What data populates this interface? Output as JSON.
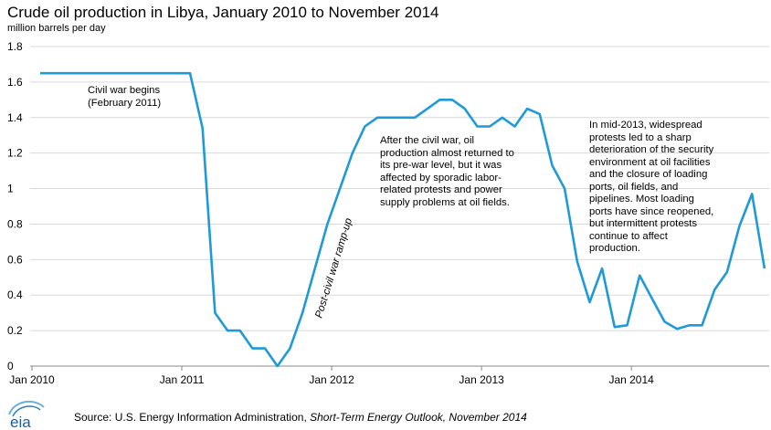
{
  "chart_data": {
    "type": "line",
    "title": "Crude oil production in Libya, January 2010 to November 2014",
    "ylabel": "million barrels  per day",
    "xlabel": "",
    "ylim": [
      0,
      1.8
    ],
    "yticks": [
      0,
      0.2,
      0.4,
      0.6,
      0.8,
      1,
      1.2,
      1.4,
      1.6,
      1.8
    ],
    "ytick_labels": [
      "0",
      "0.2",
      "0.4",
      "0.6",
      "0.8",
      "1",
      "1.2",
      "1.4",
      "1.6",
      "1.8"
    ],
    "xlim": [
      0,
      58
    ],
    "xticks": [
      0,
      12,
      24,
      36,
      48
    ],
    "xtick_labels": [
      "Jan 2010",
      "Jan 2011",
      "Jan 2012",
      "Jan 2013",
      "Jan 2014"
    ],
    "grid": true,
    "line_color": "#1f9ad6",
    "series": [
      {
        "name": "Crude oil production",
        "x": [
          0,
          1,
          2,
          3,
          4,
          5,
          6,
          7,
          8,
          9,
          10,
          11,
          12,
          13,
          14,
          15,
          16,
          17,
          18,
          19,
          20,
          21,
          22,
          23,
          24,
          25,
          26,
          27,
          28,
          29,
          30,
          31,
          32,
          33,
          34,
          35,
          36,
          37,
          38,
          39,
          40,
          41,
          42,
          43,
          44,
          45,
          46,
          47,
          48,
          49,
          50,
          51,
          52,
          53,
          54,
          55,
          56,
          57,
          58
        ],
        "values": [
          1.65,
          1.65,
          1.65,
          1.65,
          1.65,
          1.65,
          1.65,
          1.65,
          1.65,
          1.65,
          1.65,
          1.65,
          1.65,
          1.34,
          0.3,
          0.2,
          0.2,
          0.1,
          0.1,
          0.0,
          0.1,
          0.3,
          0.55,
          0.8,
          1.0,
          1.2,
          1.35,
          1.4,
          1.4,
          1.4,
          1.4,
          1.45,
          1.5,
          1.5,
          1.45,
          1.35,
          1.35,
          1.4,
          1.35,
          1.45,
          1.42,
          1.13,
          1.0,
          0.59,
          0.36,
          0.55,
          0.22,
          0.23,
          0.51,
          0.38,
          0.25,
          0.21,
          0.23,
          0.23,
          0.43,
          0.53,
          0.79,
          0.97,
          0.55
        ]
      }
    ],
    "annotations": [
      {
        "id": "civil_war",
        "lines": [
          "Civil war begins",
          "(February 2011)"
        ]
      },
      {
        "id": "ramp_up",
        "lines": [
          "Post-civil war ramp-up"
        ]
      },
      {
        "id": "after_war",
        "lines": [
          "After the civil war, oil",
          "production almost returned to",
          "its pre-war level, but it was",
          "affected by sporadic labor-",
          "related protests and power",
          "supply problems at oil fields."
        ]
      },
      {
        "id": "mid_2013",
        "lines": [
          "In mid-2013, widespread",
          "protests led to a sharp",
          "deterioration of the security",
          "environment at oil facilities",
          "and the closure of loading",
          "ports, oil fields, and",
          "pipelines. Most loading",
          "ports have since reopened,",
          "but intermittent protests",
          "continue to affect",
          "production."
        ]
      }
    ]
  },
  "footer": {
    "source_prefix": "Source: U.S. Energy Information  Administration, ",
    "source_title": "Short-Term Energy Outlook, November 2014",
    "logo_text": "eia"
  }
}
